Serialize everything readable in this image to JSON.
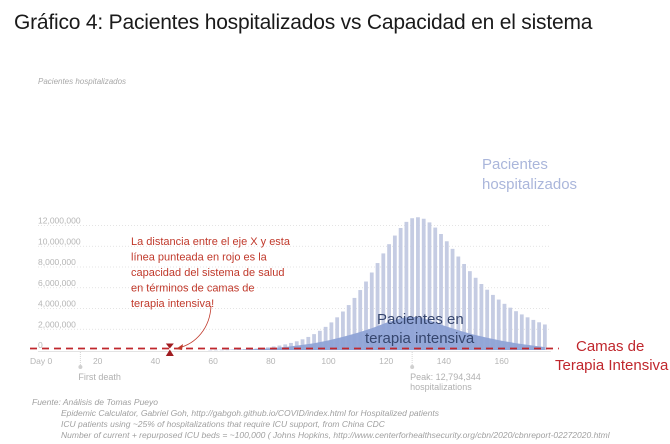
{
  "title": "Gráfico 4: Pacientes hospitalizados vs Capacidad en el sistema",
  "chart_data": {
    "type": "bar",
    "title": "Gráfico 4: Pacientes hospitalizados vs Capacidad en el sistema",
    "ylabel": "Pacientes hospitalizados",
    "xlabel": "",
    "ylim": [
      0,
      12000000
    ],
    "xlim": [
      0,
      175
    ],
    "grid": true,
    "x_ticks": [
      {
        "value": 0,
        "label": "Day 0"
      },
      {
        "value": 20,
        "label": "20"
      },
      {
        "value": 40,
        "label": "40"
      },
      {
        "value": 60,
        "label": "60"
      },
      {
        "value": 80,
        "label": "80"
      },
      {
        "value": 100,
        "label": "100"
      },
      {
        "value": 120,
        "label": "120"
      },
      {
        "value": 140,
        "label": "140"
      },
      {
        "value": 160,
        "label": "160"
      }
    ],
    "y_ticks": [
      {
        "value": 0,
        "label": "0"
      },
      {
        "value": 2000000,
        "label": "2,000,000"
      },
      {
        "value": 4000000,
        "label": "4,000,000"
      },
      {
        "value": 6000000,
        "label": "6,000,000"
      },
      {
        "value": 8000000,
        "label": "8,000,000"
      },
      {
        "value": 10000000,
        "label": "10,000,000"
      },
      {
        "value": 12000000,
        "label": "12,000,000"
      }
    ],
    "series": [
      {
        "name": "Pacientes hospitalizados",
        "type": "bar",
        "color": "#c5cce3",
        "x": [
          59,
          61,
          63,
          65,
          67,
          69,
          71,
          73,
          75,
          77,
          79,
          81,
          83,
          85,
          87,
          89,
          91,
          93,
          95,
          97,
          99,
          101,
          103,
          105,
          107,
          109,
          111,
          113,
          115,
          117,
          119,
          121,
          123,
          125,
          127,
          129,
          131,
          133,
          135,
          137,
          139,
          141,
          143,
          145,
          147,
          149,
          151,
          153,
          155,
          157,
          159,
          161,
          163,
          165,
          167,
          169,
          171,
          173,
          175
        ],
        "values": [
          10000,
          15000,
          20000,
          30000,
          45000,
          60000,
          80000,
          110000,
          150000,
          200000,
          260000,
          340000,
          430000,
          540000,
          680000,
          840000,
          1030000,
          1260000,
          1530000,
          1850000,
          2230000,
          2660000,
          3150000,
          3710000,
          4330000,
          5020000,
          5780000,
          6600000,
          7470000,
          8380000,
          9310000,
          10200000,
          11030000,
          11760000,
          12350000,
          12700000,
          12794344,
          12650000,
          12300000,
          11800000,
          11180000,
          10480000,
          9750000,
          9010000,
          8290000,
          7600000,
          6960000,
          6360000,
          5810000,
          5310000,
          4860000,
          4450000,
          4080000,
          3740000,
          3430000,
          3150000,
          2900000,
          2670000,
          2460000
        ]
      },
      {
        "name": "Pacientes en terapia intensiva",
        "type": "area",
        "color": "#8fa3d6",
        "x": [
          59,
          65,
          70,
          75,
          80,
          85,
          90,
          95,
          100,
          105,
          110,
          115,
          120,
          125,
          128,
          131,
          134,
          137,
          140,
          145,
          150,
          155,
          160,
          165,
          170,
          175
        ],
        "values": [
          0,
          15000,
          40000,
          90000,
          170000,
          290000,
          450000,
          660000,
          930000,
          1260000,
          1650000,
          2100000,
          2620000,
          3050000,
          3200000,
          3150000,
          2950000,
          2650000,
          2350000,
          1900000,
          1500000,
          1180000,
          900000,
          660000,
          450000,
          280000
        ]
      }
    ],
    "reference_line": {
      "name": "Camas de Terapia Intensiva",
      "value": 100000,
      "style": "dashed",
      "color": "#c0272d"
    },
    "annotations": [
      {
        "x": 14,
        "text": "First death"
      },
      {
        "x": 129,
        "text": "Peak: 12,794,344 hospitalizations"
      },
      {
        "x": 45,
        "text": "La distancia entre el eje X y esta línea punteada en rojo es la capacidad del sistema de salud en términos de camas de terapia intensiva!"
      }
    ],
    "legend": [
      {
        "name": "Pacientes hospitalizados",
        "placement": "right"
      },
      {
        "name": "Pacientes en terapia intensiva",
        "placement": "inside-area"
      },
      {
        "name": "Camas de Terapia Intensiva",
        "placement": "right"
      }
    ]
  },
  "labels": {
    "y_axis_title": "Pacientes hospitalizados",
    "legend_hosp_line1": "Pacientes",
    "legend_hosp_line2": "hospitalizados",
    "legend_icu_line1": "Pacientes en",
    "legend_icu_line2": "terapia intensiva",
    "beds_line1": "Camas de",
    "beds_line2": "Terapia Intensiva",
    "first_death": "First death",
    "peak_line1": "Peak: 12,794,344",
    "peak_line2": "hospitalizations",
    "annotation_lines": [
      "La distancia entre el eje X y esta",
      "línea punteada en rojo es la",
      "capacidad del sistema de salud",
      "en términos de camas de",
      "terapia intensiva!"
    ]
  },
  "source": {
    "line1": "Fuente: Análisis de Tomas Pueyo",
    "line2": "Epidemic Calculator, Gabriel Goh, http://gabgoh.github.io/COVID/index.html for Hospitalized patients",
    "line3": "ICU patients using ~25% of hospitalizations that require ICU support, from China CDC",
    "line4": "Number of current + repurposed ICU beds = ~100,000 ( Johns Hopkins, http://www.centerforhealthsecurity.org/cbn/2020/cbnreport-02272020.html"
  }
}
